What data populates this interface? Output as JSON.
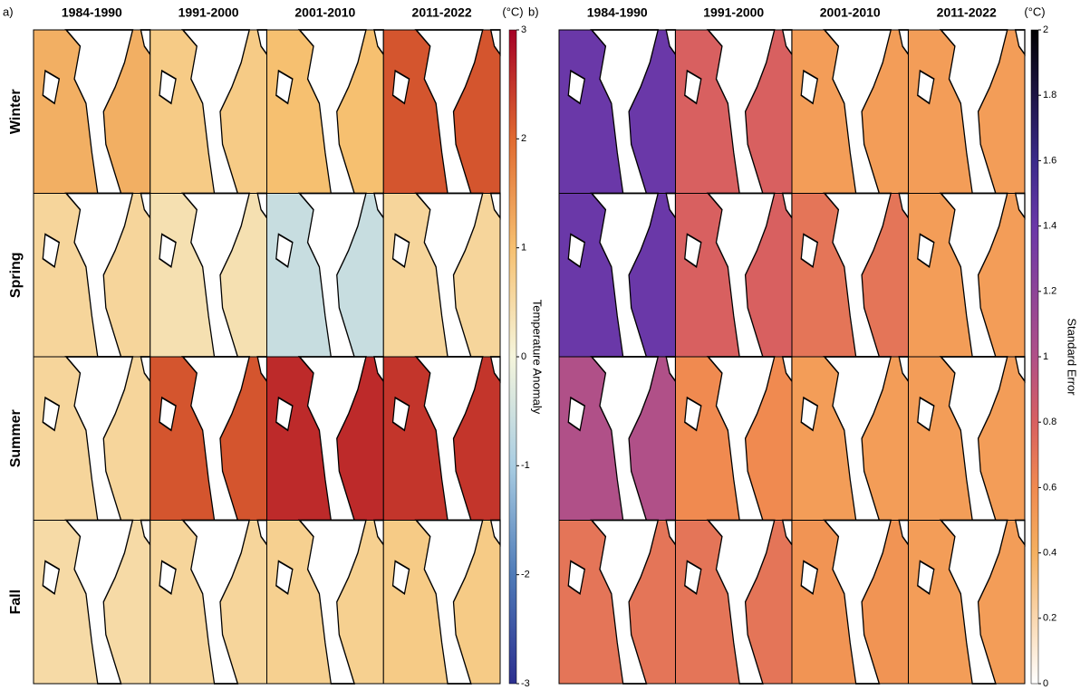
{
  "panels": [
    {
      "label": "a)",
      "columns": [
        "1984-1990",
        "1991-2000",
        "2001-2010",
        "2011-2022"
      ],
      "rows": [
        "Winter",
        "Spring",
        "Summer",
        "Fall"
      ],
      "colorbar": {
        "unit": "(°C)",
        "label": "Temperature Anomaly",
        "lim": [
          -3,
          3
        ],
        "ticks": [
          -3,
          -2,
          -1,
          0,
          1,
          2,
          3
        ]
      },
      "cell_means": [
        [
          1.2,
          0.8,
          1.0,
          2.2
        ],
        [
          0.6,
          0.4,
          -0.6,
          0.6
        ],
        [
          0.6,
          2.2,
          2.6,
          2.5
        ],
        [
          0.5,
          0.6,
          0.7,
          0.8
        ]
      ]
    },
    {
      "label": "b)",
      "columns": [
        "1984-1990",
        "1991-2000",
        "2001-2010",
        "2011-2022"
      ],
      "rows": [
        "Winter",
        "Spring",
        "Summer",
        "Fall"
      ],
      "colorbar": {
        "unit": "(°C)",
        "label": "Standard Error",
        "lim": [
          0,
          2
        ],
        "ticks": [
          0,
          0.2,
          0.4,
          0.6,
          0.8,
          1,
          1.2,
          1.4,
          1.6,
          1.8,
          2
        ]
      },
      "cell_means": [
        [
          1.4,
          0.8,
          0.5,
          0.5
        ],
        [
          1.4,
          0.8,
          0.7,
          0.5
        ],
        [
          1.0,
          0.6,
          0.5,
          0.5
        ],
        [
          0.7,
          0.7,
          0.55,
          0.5
        ]
      ]
    }
  ]
}
